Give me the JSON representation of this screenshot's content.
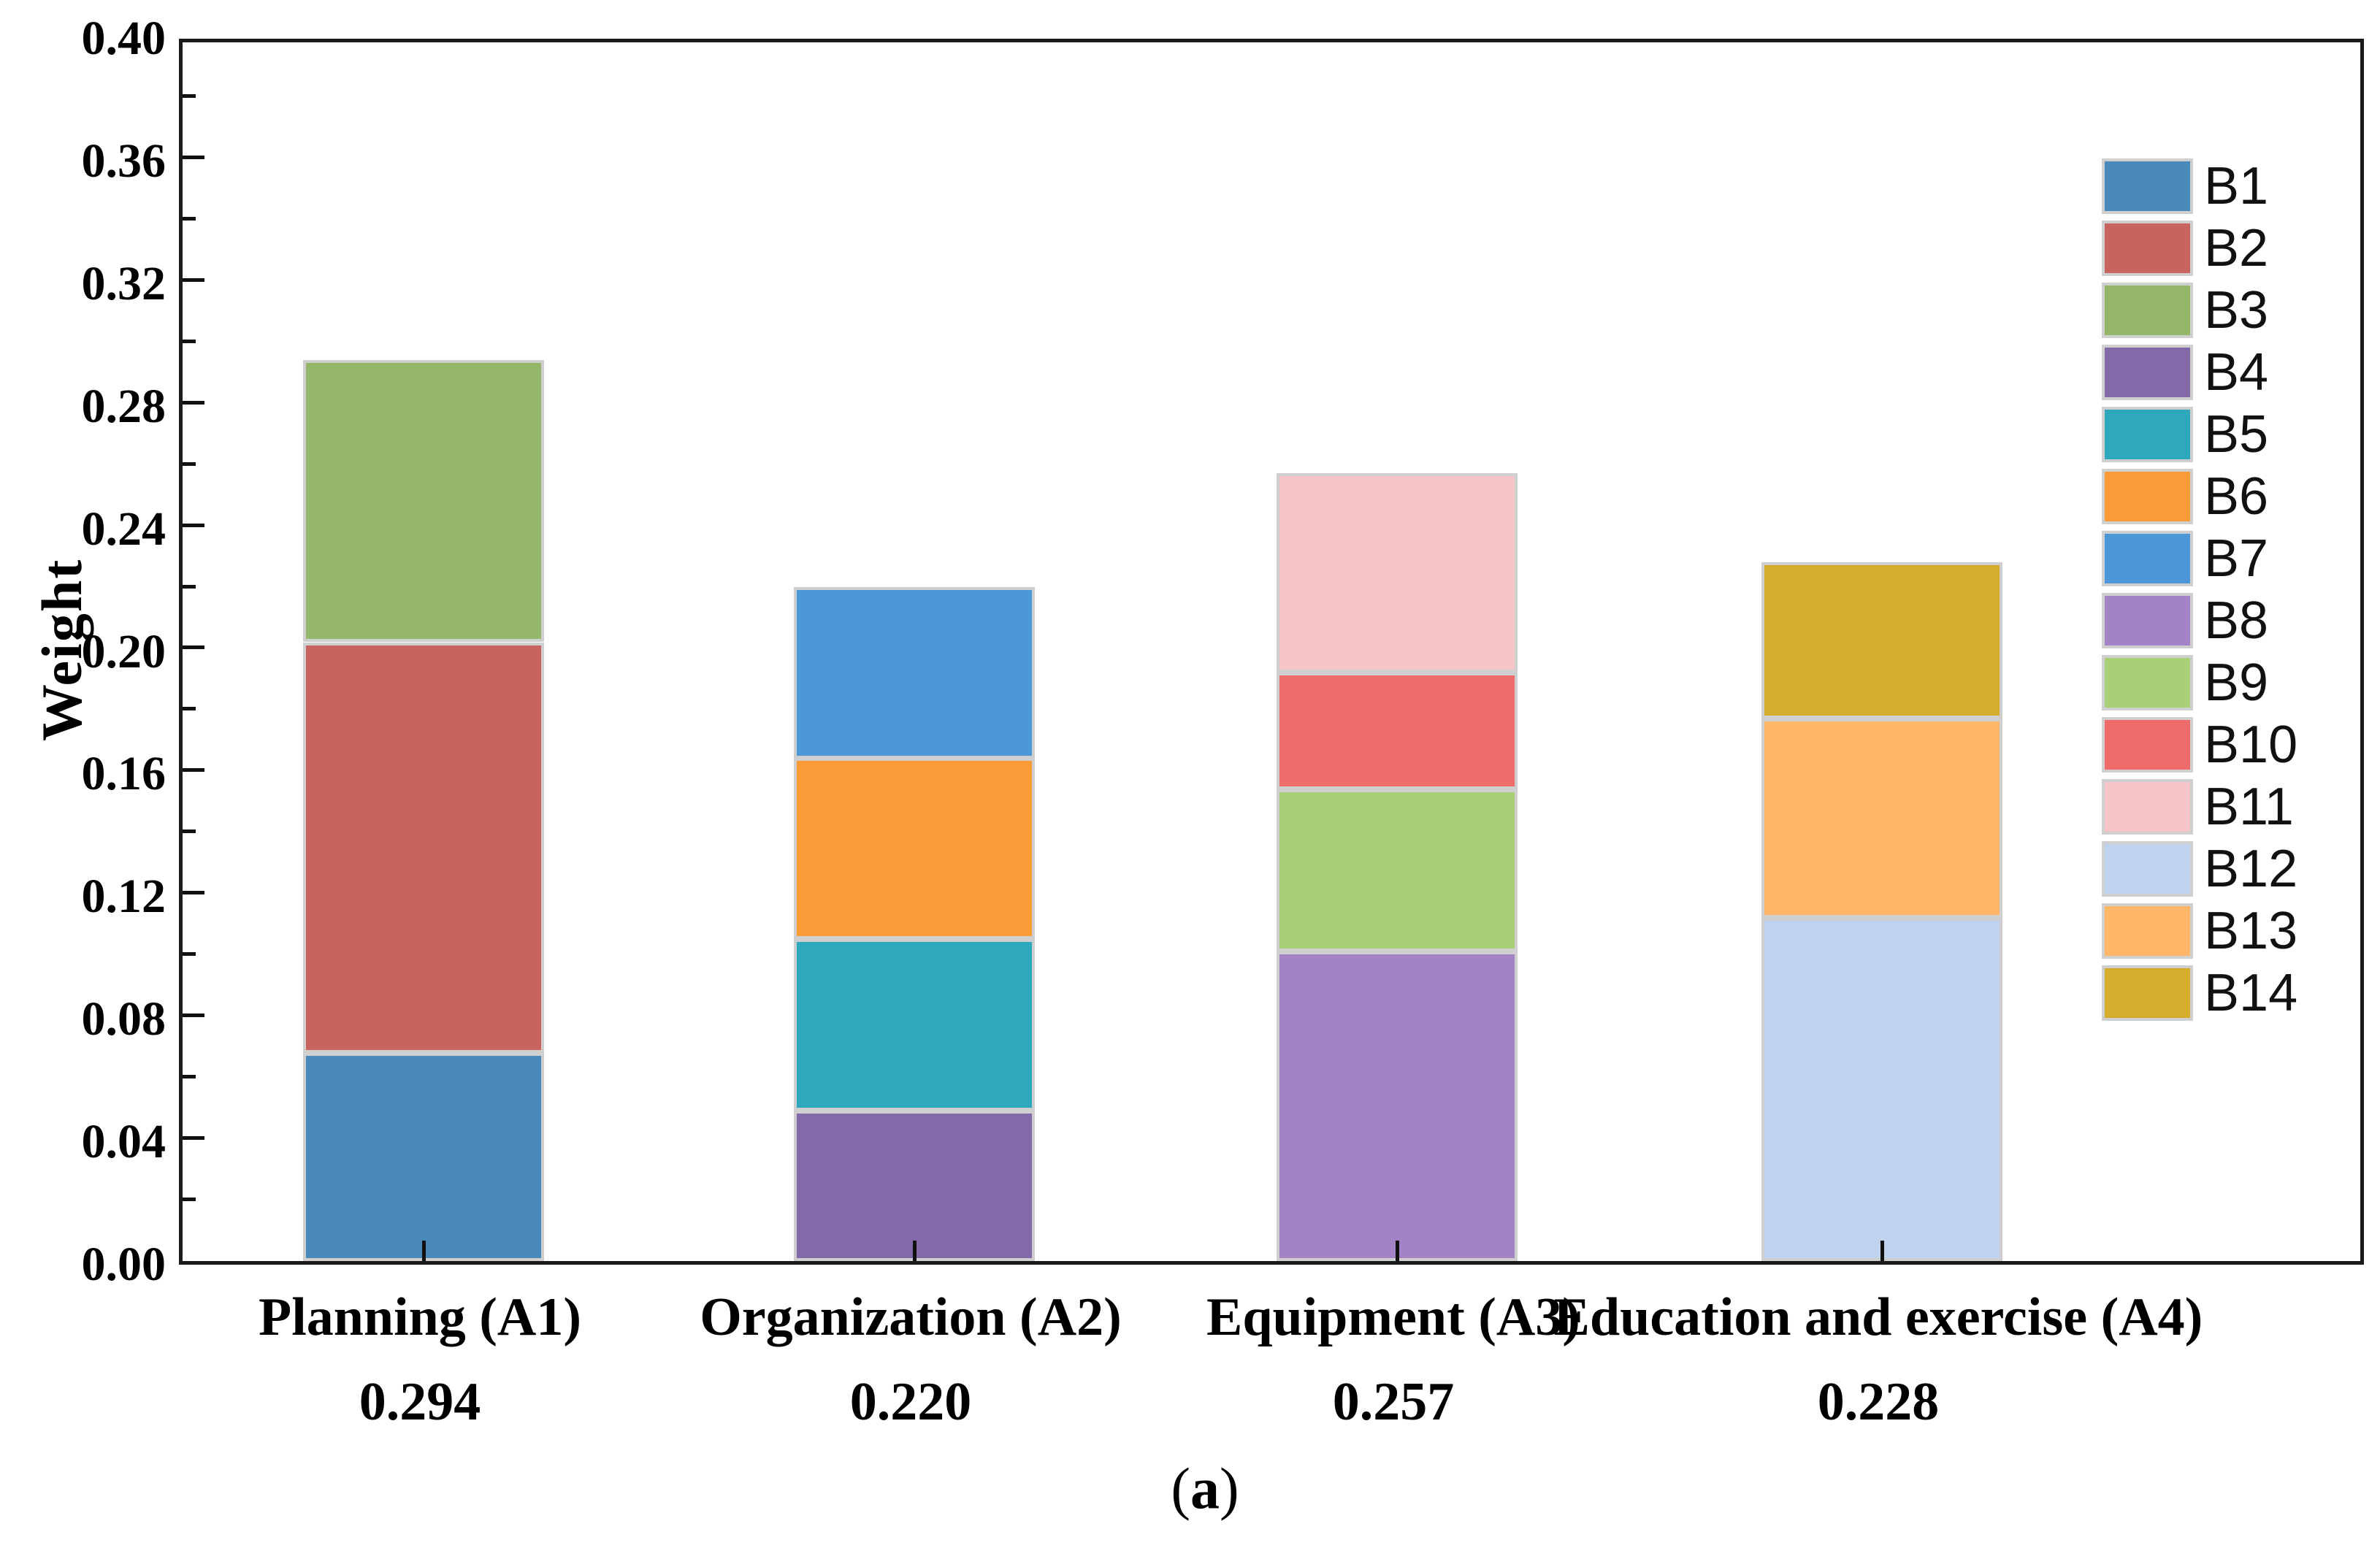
{
  "figure": {
    "caption": {
      "open": "(",
      "letter": "a",
      "close": ")"
    }
  },
  "chart_data": {
    "type": "bar",
    "subtype": "stacked-vertical",
    "title": "",
    "xlabel": "",
    "ylabel": "Weight",
    "ylim": [
      0.0,
      0.4
    ],
    "ytick_major_step": 0.04,
    "ytick_minor_step": 0.02,
    "ytick_labels": [
      "0.00",
      "0.04",
      "0.08",
      "0.12",
      "0.16",
      "0.20",
      "0.24",
      "0.28",
      "0.32",
      "0.36",
      "0.40"
    ],
    "grid": "off",
    "legend_position": "inside-right",
    "legend_entries": [
      "B1",
      "B2",
      "B3",
      "B4",
      "B5",
      "B6",
      "B7",
      "B8",
      "B9",
      "B10",
      "B11",
      "B12",
      "B13",
      "B14"
    ],
    "series_colors": {
      "B1": "#4a8abb",
      "B2": "#c96360",
      "B3": "#94b669",
      "B4": "#8469a9",
      "B5": "#2ea8ba",
      "B6": "#f99b37",
      "B7": "#4d97d9",
      "B8": "#a383c6",
      "B9": "#a9d077",
      "B10": "#ee6c6b",
      "B11": "#f6c5c7",
      "B12": "#c0d3ee",
      "B13": "#fdb766",
      "B14": "#d5ad2d"
    },
    "categories": [
      {
        "label": "Planning (A1)",
        "total_label": "0.294",
        "total": 0.294,
        "segments": [
          {
            "name": "B1",
            "value": 0.068
          },
          {
            "name": "B2",
            "value": 0.134
          },
          {
            "name": "B3",
            "value": 0.092
          }
        ]
      },
      {
        "label": "Organization (A2)",
        "total_label": "0.220",
        "total": 0.22,
        "segments": [
          {
            "name": "B4",
            "value": 0.049
          },
          {
            "name": "B5",
            "value": 0.056
          },
          {
            "name": "B6",
            "value": 0.059
          },
          {
            "name": "B7",
            "value": 0.056
          }
        ]
      },
      {
        "label": "Equipment (A3)",
        "total_label": "0.257",
        "total": 0.257,
        "segments": [
          {
            "name": "B8",
            "value": 0.101
          },
          {
            "name": "B9",
            "value": 0.053
          },
          {
            "name": "B10",
            "value": 0.038
          },
          {
            "name": "B11",
            "value": 0.065
          }
        ]
      },
      {
        "label": "Education and exercise (A4)",
        "total_label": "0.228",
        "total": 0.228,
        "segments": [
          {
            "name": "B12",
            "value": 0.112
          },
          {
            "name": "B13",
            "value": 0.065
          },
          {
            "name": "B14",
            "value": 0.051
          }
        ]
      }
    ]
  }
}
